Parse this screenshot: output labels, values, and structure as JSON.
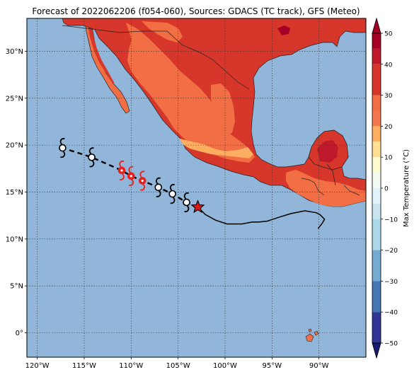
{
  "title": "Forecast of 2022062206 (f054-060), Sources: GDACS (TC track), GFS (Meteo)",
  "map": {
    "lat_labels": [
      "30°N",
      "25°N",
      "20°N",
      "15°N",
      "10°N",
      "5°N",
      "0°"
    ],
    "lon_labels": [
      "120°W",
      "115°W",
      "110°W",
      "105°W",
      "100°W",
      "95°W",
      "90°W"
    ],
    "lat_values": [
      30,
      25,
      20,
      15,
      10,
      5,
      0
    ],
    "lon_values": [
      -120,
      -115,
      -110,
      -105,
      -100,
      -95,
      -90
    ],
    "extent": {
      "lon_min": -121.1,
      "lon_max": -85.0,
      "lat_min": -2.6,
      "lat_max": 33.5
    },
    "colors": {
      "ocean": "#92b6d9",
      "land_hot": "#d7362a",
      "land_warm": "#f26f45",
      "land_mild": "#fdae61",
      "land_extreme": "#a50026",
      "track_past": "#000000",
      "track_forecast": "#000000",
      "storm_current": "#d7191c",
      "storm_intense": "#e8201e"
    },
    "past_track": [
      [
        -90.1,
        11.1
      ],
      [
        -89.7,
        11.6
      ],
      [
        -89.4,
        12.1
      ],
      [
        -89.9,
        12.6
      ],
      [
        -90.3,
        12.8
      ],
      [
        -91.5,
        13.0
      ],
      [
        -93.0,
        12.7
      ],
      [
        -94.3,
        12.3
      ],
      [
        -95.5,
        11.9
      ],
      [
        -96.4,
        11.8
      ],
      [
        -97.1,
        11.8
      ],
      [
        -98.2,
        11.6
      ],
      [
        -99.8,
        11.6
      ],
      [
        -101.0,
        12.0
      ],
      [
        -102.1,
        12.6
      ],
      [
        -102.9,
        13.4
      ]
    ],
    "current_position": [
      -102.9,
      13.4
    ],
    "forecast_points": [
      {
        "lon": -117.3,
        "lat": 19.7,
        "intensity": "storm"
      },
      {
        "lon": -114.2,
        "lat": 18.7,
        "intensity": "storm"
      },
      {
        "lon": -111.0,
        "lat": 17.3,
        "intensity": "hurricane"
      },
      {
        "lon": -110.0,
        "lat": 16.7,
        "intensity": "hurricane"
      },
      {
        "lon": -108.8,
        "lat": 16.2,
        "intensity": "hurricane"
      },
      {
        "lon": -107.1,
        "lat": 15.5,
        "intensity": "storm"
      },
      {
        "lon": -105.6,
        "lat": 14.8,
        "intensity": "storm"
      },
      {
        "lon": -104.1,
        "lat": 13.9,
        "intensity": "storm"
      }
    ]
  },
  "colorbar": {
    "label": "Max Temperature (°C)",
    "ticks": [
      "50",
      "40",
      "30",
      "20",
      "10",
      "0",
      "−10",
      "−20",
      "−30",
      "−40",
      "−50"
    ],
    "min": -50,
    "max": 50,
    "bands": [
      {
        "from": 45,
        "to": 50,
        "color": "#a50026"
      },
      {
        "from": 40,
        "to": 45,
        "color": "#bf1a2b"
      },
      {
        "from": 30,
        "to": 40,
        "color": "#d7362a"
      },
      {
        "from": 25,
        "to": 30,
        "color": "#f26f45"
      },
      {
        "from": 20,
        "to": 25,
        "color": "#f4774d"
      },
      {
        "from": 15,
        "to": 20,
        "color": "#fdae61"
      },
      {
        "from": 10,
        "to": 15,
        "color": "#fee090"
      },
      {
        "from": 5,
        "to": 10,
        "color": "#fffbd0"
      },
      {
        "from": 0,
        "to": 5,
        "color": "#f3fbf0"
      },
      {
        "from": -5,
        "to": 0,
        "color": "#e0f3f8"
      },
      {
        "from": -10,
        "to": -5,
        "color": "#c9e6f0"
      },
      {
        "from": -20,
        "to": -10,
        "color": "#abd9e9"
      },
      {
        "from": -30,
        "to": -20,
        "color": "#74add1"
      },
      {
        "from": -40,
        "to": -30,
        "color": "#4575b4"
      },
      {
        "from": -50,
        "to": -40,
        "color": "#313695"
      }
    ]
  }
}
